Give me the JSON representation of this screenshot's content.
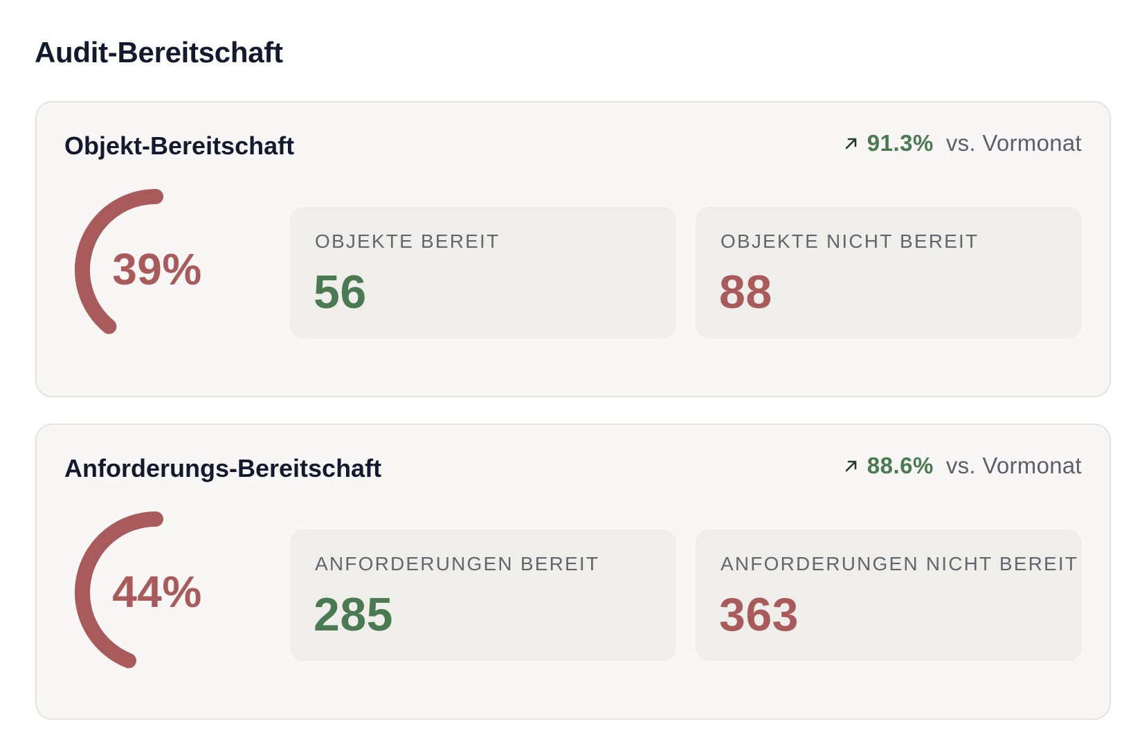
{
  "page": {
    "title": "Audit-Bereitschaft"
  },
  "colors": {
    "positive": "#4a7a52",
    "negative": "#a95a5a",
    "gauge_track": "#f8f7f5"
  },
  "cards": [
    {
      "title": "Objekt-Bereitschaft",
      "trend": {
        "icon": "arrow-up-right-icon",
        "value": "91.3%",
        "label": "vs. Vormonat"
      },
      "gauge": {
        "value_text": "39%",
        "fraction": 0.39
      },
      "stats": [
        {
          "label": "OBJEKTE BEREIT",
          "value": "56",
          "tone": "positive"
        },
        {
          "label": "OBJEKTE NICHT BEREIT",
          "value": "88",
          "tone": "negative"
        }
      ]
    },
    {
      "title": "Anforderungs-Bereitschaft",
      "trend": {
        "icon": "arrow-up-right-icon",
        "value": "88.6%",
        "label": "vs. Vormonat"
      },
      "gauge": {
        "value_text": "44%",
        "fraction": 0.44
      },
      "stats": [
        {
          "label": "ANFORDERUNGEN BEREIT",
          "value": "285",
          "tone": "positive"
        },
        {
          "label": "ANFORDERUNGEN NICHT BEREIT",
          "value": "363",
          "tone": "negative"
        }
      ]
    }
  ]
}
